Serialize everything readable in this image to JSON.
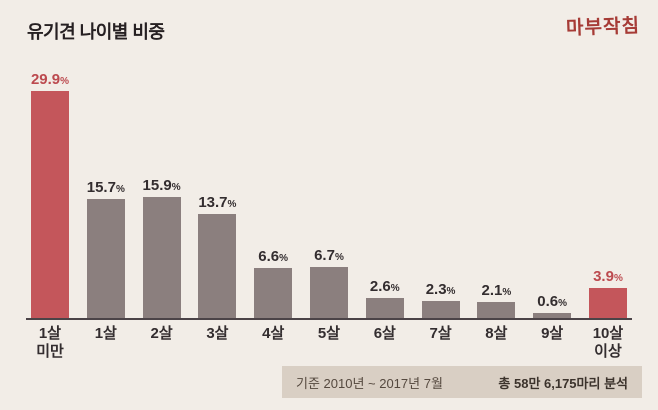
{
  "header": {
    "title": "유기견 나이별 비중",
    "logo": "마부작침"
  },
  "chart_data": {
    "type": "bar",
    "title": "유기견 나이별 비중",
    "categories": [
      "1살\n미만",
      "1살",
      "2살",
      "3살",
      "4살",
      "5살",
      "6살",
      "7살",
      "8살",
      "9살",
      "10살\n이상"
    ],
    "values": [
      29.9,
      15.7,
      15.9,
      13.7,
      6.6,
      6.7,
      2.6,
      2.3,
      2.1,
      0.6,
      3.9
    ],
    "value_suffix": "%",
    "highlight_indices": [
      0,
      10
    ],
    "bar_color": "#8b7f7e",
    "highlight_color": "#c4565b",
    "ylim": [
      0,
      32
    ],
    "grid": false,
    "legend": false,
    "xlabel": "",
    "ylabel": ""
  },
  "footer": {
    "note": "기준 2010년 ~ 2017년 7월",
    "total": "총 58만 6,175마리 분석"
  }
}
